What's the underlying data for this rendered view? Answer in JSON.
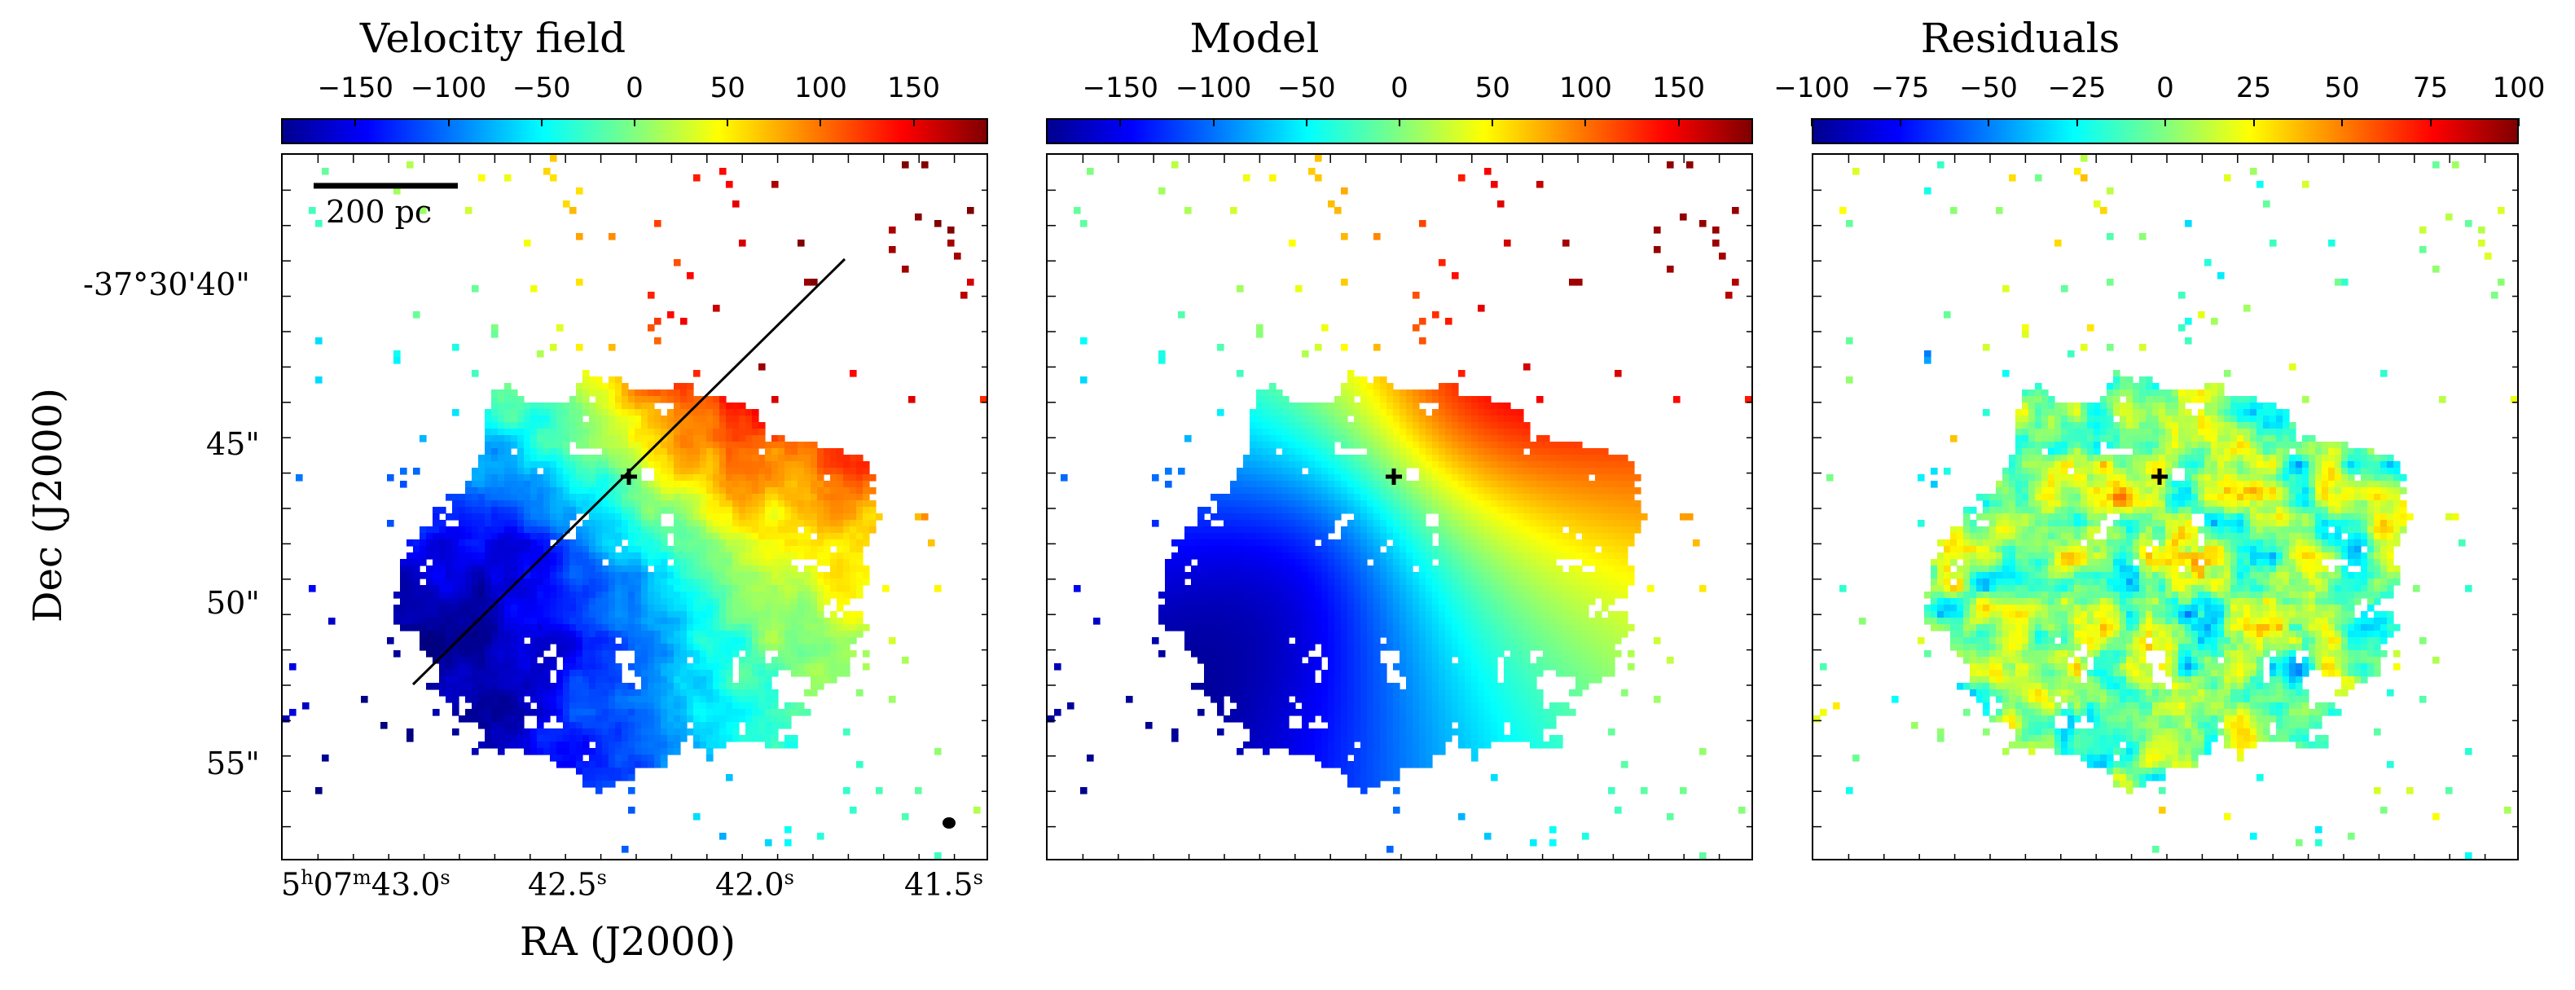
{
  "panels": [
    {
      "title": "Velocity field",
      "colorbar": {
        "min": -190,
        "max": 190,
        "ticks": [
          "−150",
          "−100",
          "−50",
          "0",
          "50",
          "100",
          "150"
        ],
        "tick_values": [
          -150,
          -100,
          -50,
          0,
          50,
          100,
          150
        ]
      }
    },
    {
      "title": "Model",
      "colorbar": {
        "min": -190,
        "max": 190,
        "ticks": [
          "−150",
          "−100",
          "−50",
          "0",
          "50",
          "100",
          "150"
        ],
        "tick_values": [
          -150,
          -100,
          -50,
          0,
          50,
          100,
          150
        ]
      }
    },
    {
      "title": "Residuals",
      "colorbar": {
        "min": -100,
        "max": 100,
        "ticks": [
          "−100",
          "−75",
          "−50",
          "−25",
          "0",
          "25",
          "50",
          "75",
          "100"
        ],
        "tick_values": [
          -100,
          -75,
          -50,
          -25,
          0,
          25,
          50,
          75,
          100
        ]
      }
    }
  ],
  "axes": {
    "xlabel": "RA (J2000)",
    "ylabel": "Dec (J2000)",
    "x_ticks": [
      {
        "main": "5",
        "sup1": "h",
        "mid": "07",
        "sup2": "m",
        "sec": "43.0",
        "sup3": "s"
      },
      {
        "sec": "42.5",
        "sup3": "s"
      },
      {
        "sec": "42.0",
        "sup3": "s"
      },
      {
        "sec": "41.5",
        "sup3": "s"
      }
    ],
    "y_ticks": [
      "-37°30'40\"",
      "45\"",
      "50\"",
      "55\""
    ]
  },
  "scalebar": {
    "label": "200 pc"
  },
  "colors": {
    "cmap": "jet",
    "marker": "#000000"
  }
}
